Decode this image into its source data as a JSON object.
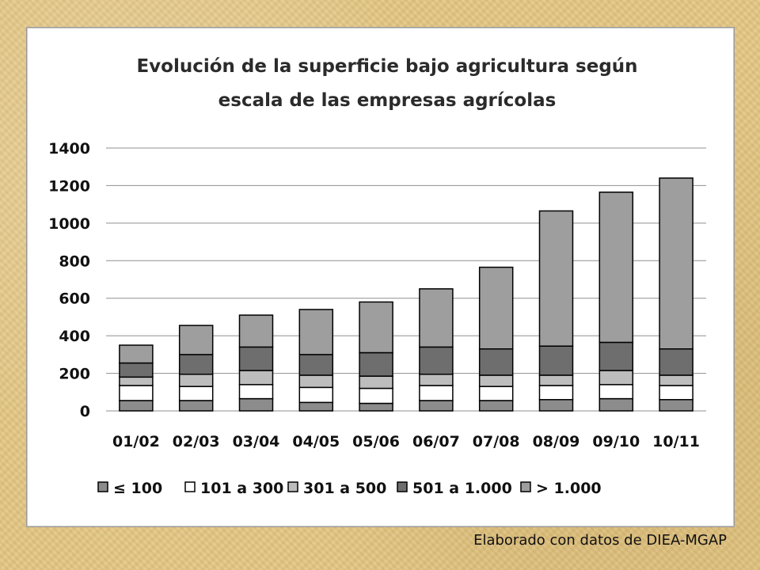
{
  "source_note": "Elaborado con datos de DIEA-MGAP",
  "chart_data": {
    "type": "bar",
    "stacked": true,
    "title_lines": [
      "Evolución de la superficie bajo agricultura según",
      "escala de las empresas agrícolas"
    ],
    "categories": [
      "01/02",
      "02/03",
      "03/04",
      "04/05",
      "05/06",
      "06/07",
      "07/08",
      "08/09",
      "09/10",
      "10/11"
    ],
    "ylim": [
      0,
      1400
    ],
    "yticks": [
      0,
      200,
      400,
      600,
      800,
      1000,
      1200,
      1400
    ],
    "grid": true,
    "legend_position": "bottom",
    "series": [
      {
        "name": "≤ 100",
        "color": "#8c8c8c",
        "values": [
          55,
          55,
          65,
          45,
          40,
          55,
          55,
          60,
          65,
          60
        ]
      },
      {
        "name": "101 a 300",
        "color": "#ffffff",
        "values": [
          80,
          75,
          75,
          80,
          80,
          80,
          75,
          75,
          75,
          75
        ]
      },
      {
        "name": "301 a 500",
        "color": "#bdbdbd",
        "values": [
          45,
          65,
          75,
          65,
          65,
          60,
          60,
          55,
          75,
          55
        ]
      },
      {
        "name": "501 a 1.000",
        "color": "#6e6e6e",
        "values": [
          75,
          105,
          125,
          110,
          125,
          145,
          140,
          155,
          150,
          140
        ]
      },
      {
        "name": "> 1.000",
        "color": "#9e9e9e",
        "values": [
          95,
          155,
          170,
          240,
          270,
          310,
          435,
          720,
          800,
          910
        ]
      }
    ]
  }
}
